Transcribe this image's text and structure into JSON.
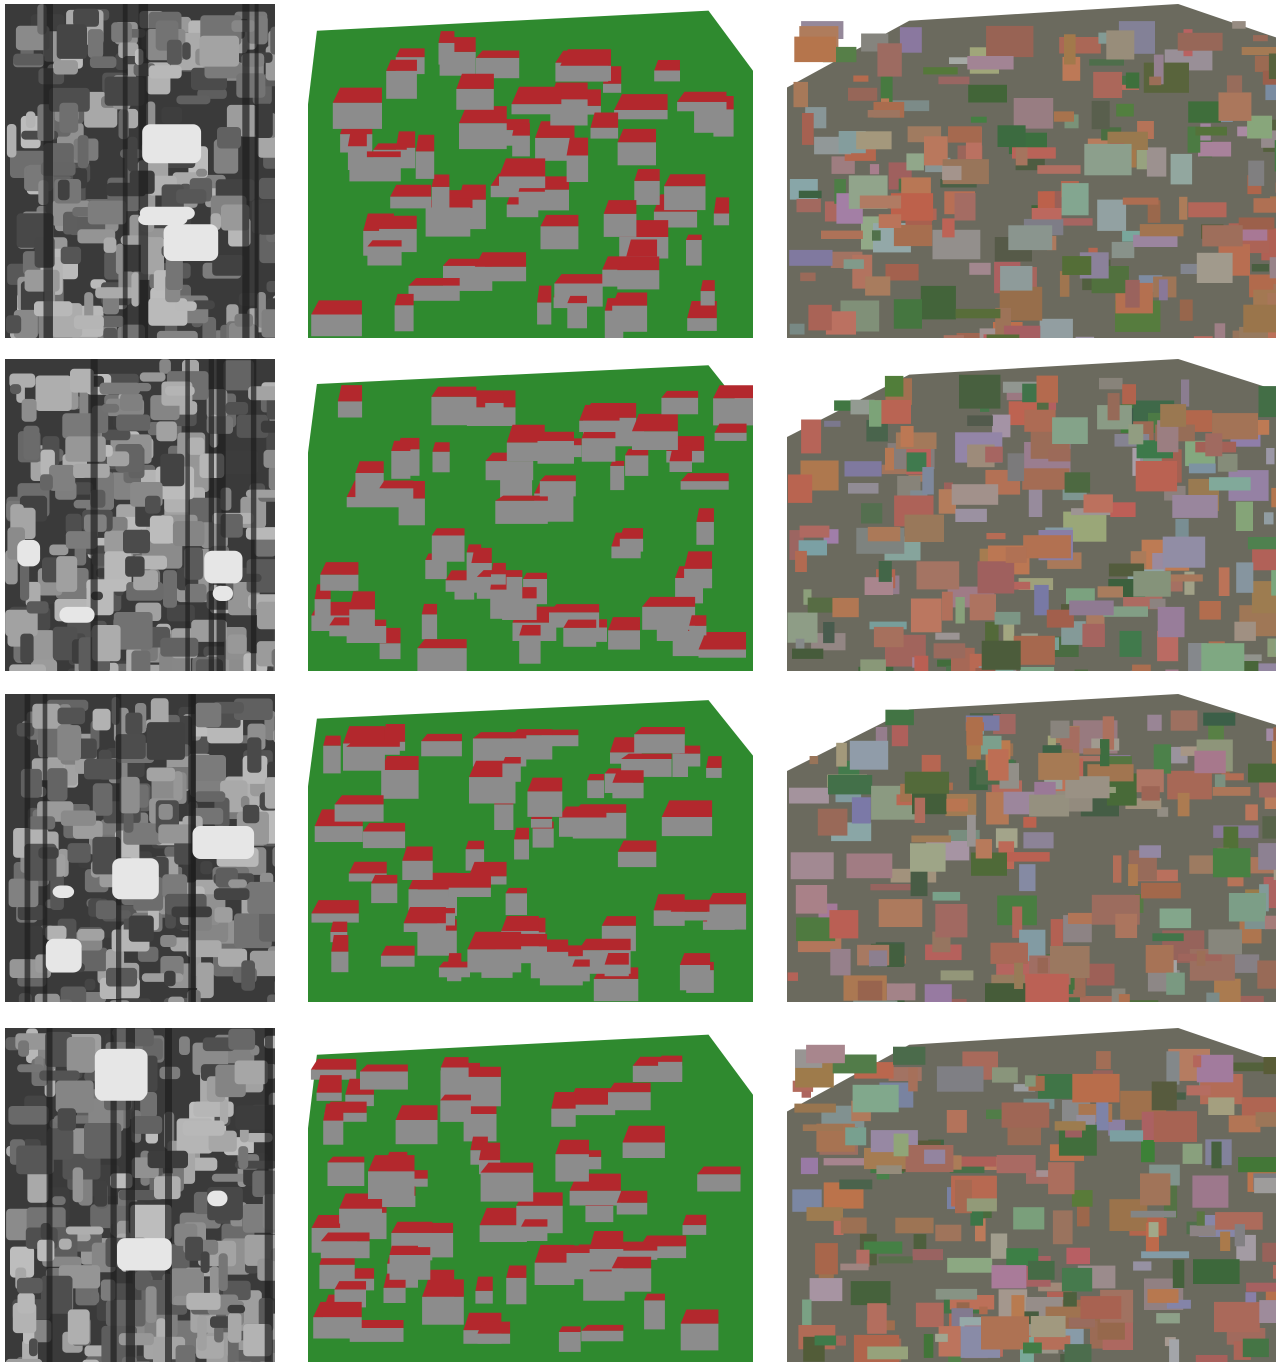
{
  "figure": {
    "columns": [
      "elevation-map",
      "3d-model",
      "textured-mesh"
    ],
    "rows": 4
  },
  "colors": {
    "ground": "#2f8a2f",
    "roof": "#b3282d",
    "wall": "#8c8c8c",
    "dsm_dark": "#1a1a1a",
    "dsm_light": "#e6e6e6"
  }
}
